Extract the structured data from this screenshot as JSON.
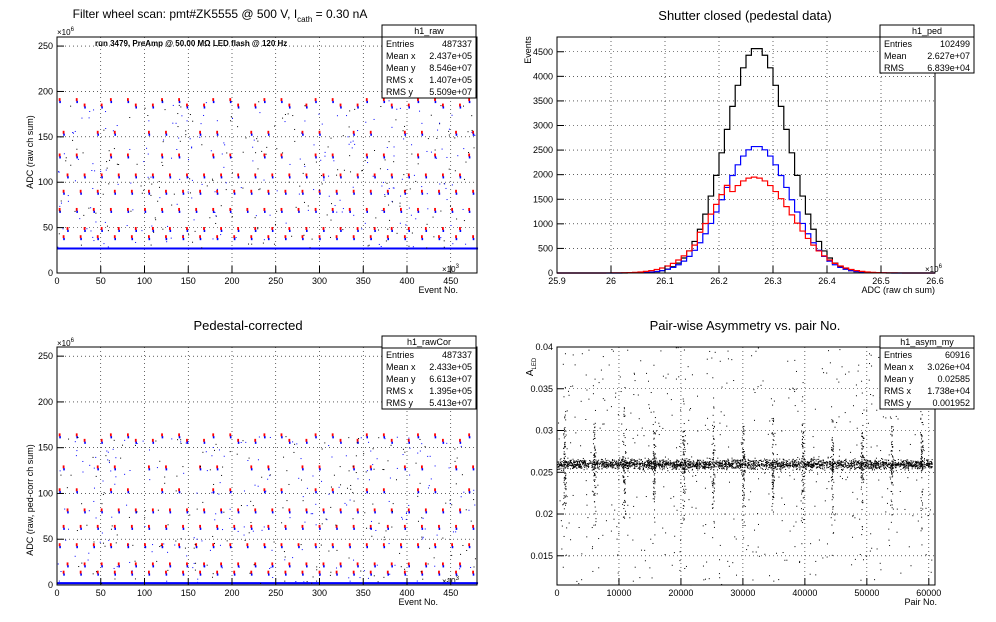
{
  "chart_data": [
    {
      "type": "scatter",
      "title_main": "Filter wheel scan: pmt#ZK5555 @   500 V, I",
      "title_sub": "cath",
      "title_tail": " = 0.30 nA",
      "annotation": "run 3479, PreAmp @ 50.00 MΩ LED flash @  120 Hz",
      "xlabel": "Event No.",
      "ylabel": "ADC (raw ch sum)",
      "x_exponent": "×10",
      "x_exponent_power": "3",
      "y_exponent": "×10",
      "y_exponent_power": "6",
      "xlim": [
        0,
        480
      ],
      "ylim": [
        0,
        260
      ],
      "xticks": [
        0,
        50,
        100,
        150,
        200,
        250,
        300,
        350,
        400,
        450
      ],
      "yticks": [
        0,
        50,
        100,
        150,
        200,
        250
      ],
      "stats": {
        "name": "h1_raw",
        "rows": [
          {
            "label": "Entries",
            "value": "487337"
          },
          {
            "label": "Mean x",
            "value": "2.437e+05"
          },
          {
            "label": "Mean y",
            "value": "8.546e+07"
          },
          {
            "label": "RMS x",
            "value": "1.407e+05"
          },
          {
            "label": "RMS y",
            "value": "5.509e+07"
          }
        ]
      },
      "levels": [
        27,
        40,
        49,
        70,
        90,
        108,
        130,
        155,
        185,
        191
      ],
      "period": 19.5
    },
    {
      "type": "histogram",
      "title": "Shutter closed (pedestal data)",
      "xlabel": "ADC (raw ch sum)",
      "ylabel": "Events",
      "x_exponent": "×10",
      "x_exponent_power": "6",
      "xlim": [
        25.9,
        26.6
      ],
      "ylim": [
        0,
        4800
      ],
      "xticks": [
        "25.9",
        "26",
        "26.1",
        "26.2",
        "26.3",
        "26.4",
        "26.5",
        "26.6"
      ],
      "yticks": [
        0,
        500,
        1000,
        1500,
        2000,
        2500,
        3000,
        3500,
        4000,
        4500
      ],
      "stats": {
        "name": "h1_ped",
        "rows": [
          {
            "label": "Entries",
            "value": "102499"
          },
          {
            "label": "Mean",
            "value": "2.627e+07"
          },
          {
            "label": "RMS",
            "value": "6.839e+04"
          }
        ]
      },
      "series": [
        {
          "color": "#000000",
          "mean": 26.27,
          "sigma": 0.058,
          "peak": 4580
        },
        {
          "color": "#0000ff",
          "mean": 26.27,
          "sigma": 0.062,
          "peak": 2580
        },
        {
          "color": "#ff0000",
          "mean": 26.265,
          "sigma": 0.07,
          "peak": 1950
        }
      ]
    },
    {
      "type": "scatter",
      "title": "Pedestal-corrected",
      "xlabel": "Event No.",
      "ylabel": "ADC (raw, ped-corr ch sum)",
      "x_exponent": "×10",
      "x_exponent_power": "3",
      "y_exponent": "×10",
      "y_exponent_power": "6",
      "xlim": [
        0,
        480
      ],
      "ylim": [
        0,
        260
      ],
      "xticks": [
        0,
        50,
        100,
        150,
        200,
        250,
        300,
        350,
        400,
        450
      ],
      "yticks": [
        0,
        50,
        100,
        150,
        200,
        250
      ],
      "stats": {
        "name": "h1_rawCor",
        "rows": [
          {
            "label": "Entries",
            "value": "487337"
          },
          {
            "label": "Mean x",
            "value": "2.433e+05"
          },
          {
            "label": "Mean y",
            "value": "6.613e+07"
          },
          {
            "label": "RMS x",
            "value": "1.395e+05"
          },
          {
            "label": "RMS y",
            "value": "5.413e+07"
          }
        ]
      },
      "levels": [
        2,
        14,
        23,
        44,
        64,
        82,
        104,
        129,
        158,
        164
      ],
      "period": 19.5
    },
    {
      "type": "scatter",
      "title": "Pair-wise Asymmetry vs. pair No.",
      "xlabel": "Pair No.",
      "ylabel": "A",
      "ylabel_sub": "LED",
      "xlim": [
        0,
        61000
      ],
      "ylim": [
        0.0115,
        0.04
      ],
      "xticks": [
        0,
        10000,
        20000,
        30000,
        40000,
        50000,
        60000
      ],
      "yticks": [
        "0.015",
        "0.02",
        "0.025",
        "0.03",
        "0.035",
        "0.04"
      ],
      "stats": {
        "name": "h1_asym_my",
        "rows": [
          {
            "label": "Entries",
            "value": "60916"
          },
          {
            "label": "Mean x",
            "value": "3.026e+04"
          },
          {
            "label": "Mean y",
            "value": "0.02585"
          },
          {
            "label": "RMS x",
            "value": "1.738e+04"
          },
          {
            "label": "RMS y",
            "value": "0.001952"
          }
        ]
      },
      "band_center": 0.026,
      "band_width": 0.0006,
      "spike_spacing": 4800
    }
  ]
}
